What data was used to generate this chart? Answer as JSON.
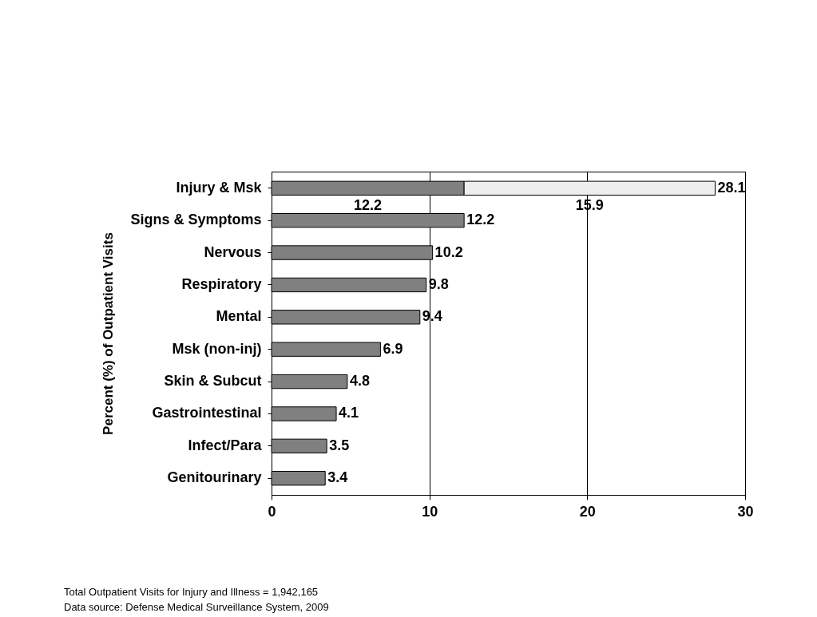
{
  "chart_data": {
    "type": "bar",
    "orientation": "horizontal",
    "stacked": true,
    "ylabel": "Percent (%) of Outpatient Visits",
    "categories": [
      "Injury & Msk",
      "Signs & Symptoms",
      "Nervous",
      "Respiratory",
      "Mental",
      "Msk (non-inj)",
      "Skin & Subcut",
      "Gastrointestinal",
      "Infect/Para",
      "Genitourinary"
    ],
    "series": [
      {
        "color": "#808080",
        "values": [
          12.2,
          12.2,
          10.2,
          9.8,
          9.4,
          6.9,
          4.8,
          4.1,
          3.5,
          3.4
        ],
        "value_labels": [
          "12.2",
          "12.2",
          "10.2",
          "9.8",
          "9.4",
          "6.9",
          "4.8",
          "4.1",
          "3.5",
          "3.4"
        ]
      },
      {
        "color": "#eeeeee",
        "values": [
          15.9,
          null,
          null,
          null,
          null,
          null,
          null,
          null,
          null,
          null
        ],
        "value_labels": [
          "15.9",
          null,
          null,
          null,
          null,
          null,
          null,
          null,
          null,
          null
        ]
      }
    ],
    "totals": [
      "28.1",
      null,
      null,
      null,
      null,
      null,
      null,
      null,
      null,
      null
    ],
    "xlim": [
      0,
      30
    ],
    "xticks": [
      0,
      10,
      20,
      30
    ],
    "grid": "x",
    "legend": false,
    "annotations": [
      "Total Outpatient Visits for Injury and Illness = 1,942,165",
      "Data source: Defense Medical Surveillance System, 2009"
    ]
  }
}
